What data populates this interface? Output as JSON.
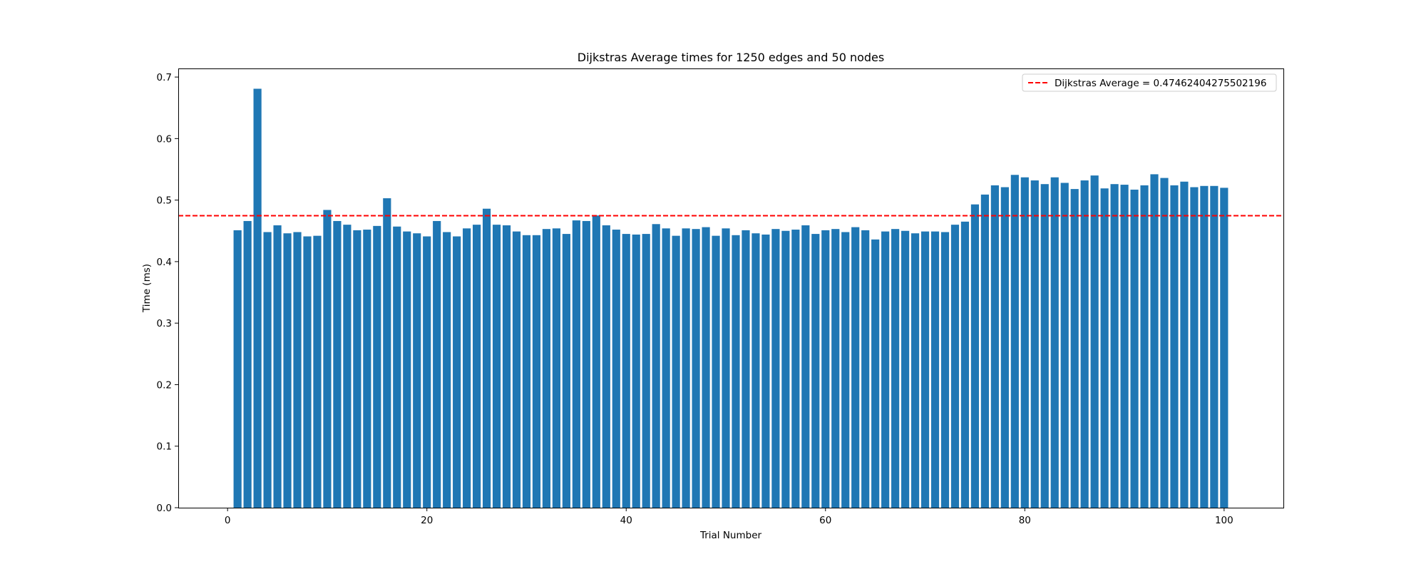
{
  "chart_data": {
    "type": "bar",
    "title": "Dijkstras Average times for 1250 edges and 50 nodes",
    "xlabel": "Trial Number",
    "ylabel": "Time (ms)",
    "xlim": [
      -4.95,
      105.95
    ],
    "ylim": [
      0,
      0.714
    ],
    "x_ticks": [
      0,
      20,
      40,
      60,
      80,
      100
    ],
    "y_ticks": [
      0.0,
      0.1,
      0.2,
      0.3,
      0.4,
      0.5,
      0.6,
      0.7
    ],
    "x_tick_labels": [
      "0",
      "20",
      "40",
      "60",
      "80",
      "100"
    ],
    "y_tick_labels": [
      "0.0",
      "0.1",
      "0.2",
      "0.3",
      "0.4",
      "0.5",
      "0.6",
      "0.7"
    ],
    "grid": false,
    "bar_color": "#1f77b4",
    "categories": [
      1,
      2,
      3,
      4,
      5,
      6,
      7,
      8,
      9,
      10,
      11,
      12,
      13,
      14,
      15,
      16,
      17,
      18,
      19,
      20,
      21,
      22,
      23,
      24,
      25,
      26,
      27,
      28,
      29,
      30,
      31,
      32,
      33,
      34,
      35,
      36,
      37,
      38,
      39,
      40,
      41,
      42,
      43,
      44,
      45,
      46,
      47,
      48,
      49,
      50,
      51,
      52,
      53,
      54,
      55,
      56,
      57,
      58,
      59,
      60,
      61,
      62,
      63,
      64,
      65,
      66,
      67,
      68,
      69,
      70,
      71,
      72,
      73,
      74,
      75,
      76,
      77,
      78,
      79,
      80,
      81,
      82,
      83,
      84,
      85,
      86,
      87,
      88,
      89,
      90,
      91,
      92,
      93,
      94,
      95,
      96,
      97,
      98,
      99,
      100
    ],
    "values": [
      0.451,
      0.466,
      0.681,
      0.448,
      0.459,
      0.446,
      0.448,
      0.441,
      0.442,
      0.484,
      0.466,
      0.46,
      0.451,
      0.452,
      0.458,
      0.503,
      0.457,
      0.449,
      0.446,
      0.441,
      0.466,
      0.448,
      0.441,
      0.454,
      0.46,
      0.486,
      0.46,
      0.459,
      0.449,
      0.443,
      0.443,
      0.453,
      0.454,
      0.445,
      0.467,
      0.466,
      0.475,
      0.459,
      0.452,
      0.445,
      0.444,
      0.445,
      0.461,
      0.454,
      0.442,
      0.454,
      0.453,
      0.456,
      0.442,
      0.454,
      0.443,
      0.451,
      0.446,
      0.444,
      0.453,
      0.45,
      0.452,
      0.459,
      0.445,
      0.451,
      0.453,
      0.448,
      0.456,
      0.451,
      0.436,
      0.449,
      0.453,
      0.45,
      0.446,
      0.449,
      0.449,
      0.448,
      0.46,
      0.465,
      0.493,
      0.509,
      0.524,
      0.521,
      0.541,
      0.537,
      0.532,
      0.526,
      0.537,
      0.528,
      0.518,
      0.532,
      0.54,
      0.519,
      0.526,
      0.525,
      0.517,
      0.524,
      0.542,
      0.536,
      0.524,
      0.53,
      0.521,
      0.523,
      0.523,
      0.52
    ],
    "average": {
      "value": 0.47462404275502196,
      "color": "#ff0000",
      "style": "dashed",
      "legend_label": "Dijkstras Average = 0.47462404275502196",
      "legend_position": "upper right"
    }
  }
}
